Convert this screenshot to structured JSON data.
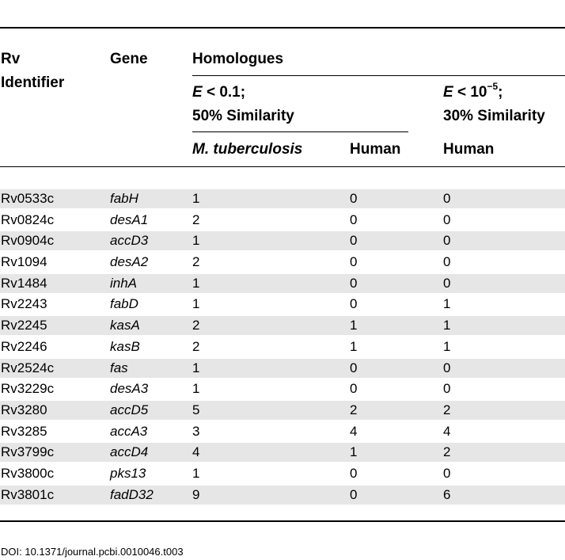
{
  "table": {
    "headers": {
      "rv_identifier": [
        "Rv",
        "Identifier"
      ],
      "gene": "Gene",
      "homologues": "Homologues",
      "group1": {
        "e_var": "E",
        "e_cond": " < 0.1;",
        "similarity": "50% Similarity"
      },
      "group2": {
        "e_var": "E",
        "e_cond": " < 10",
        "e_exp": "−5",
        "e_tail": ";",
        "similarity": "30% Similarity"
      },
      "col_mtb": "M. tuberculosis",
      "col_human1": "Human",
      "col_human2": "Human"
    },
    "rows": [
      {
        "rv": "Rv0533c",
        "gene": "fabH",
        "mtb": "1",
        "human1": "0",
        "human2": "0"
      },
      {
        "rv": "Rv0824c",
        "gene": "desA1",
        "mtb": "2",
        "human1": "0",
        "human2": "0"
      },
      {
        "rv": "Rv0904c",
        "gene": "accD3",
        "mtb": "1",
        "human1": "0",
        "human2": "0"
      },
      {
        "rv": "Rv1094",
        "gene": "desA2",
        "mtb": "2",
        "human1": "0",
        "human2": "0"
      },
      {
        "rv": "Rv1484",
        "gene": "inhA",
        "mtb": "1",
        "human1": "0",
        "human2": "0"
      },
      {
        "rv": "Rv2243",
        "gene": "fabD",
        "mtb": "1",
        "human1": "0",
        "human2": "1"
      },
      {
        "rv": "Rv2245",
        "gene": "kasA",
        "mtb": "2",
        "human1": "1",
        "human2": "1"
      },
      {
        "rv": "Rv2246",
        "gene": "kasB",
        "mtb": "2",
        "human1": "1",
        "human2": "1"
      },
      {
        "rv": "Rv2524c",
        "gene": "fas",
        "mtb": "1",
        "human1": "0",
        "human2": "0"
      },
      {
        "rv": "Rv3229c",
        "gene": "desA3",
        "mtb": "1",
        "human1": "0",
        "human2": "0"
      },
      {
        "rv": "Rv3280",
        "gene": "accD5",
        "mtb": "5",
        "human1": "2",
        "human2": "2"
      },
      {
        "rv": "Rv3285",
        "gene": "accA3",
        "mtb": "3",
        "human1": "4",
        "human2": "4"
      },
      {
        "rv": "Rv3799c",
        "gene": "accD4",
        "mtb": "4",
        "human1": "1",
        "human2": "2"
      },
      {
        "rv": "Rv3800c",
        "gene": "pks13",
        "mtb": "1",
        "human1": "0",
        "human2": "0"
      },
      {
        "rv": "Rv3801c",
        "gene": "fadD32",
        "mtb": "9",
        "human1": "0",
        "human2": "6"
      }
    ]
  },
  "doi": "DOI: 10.1371/journal.pcbi.0010046.t003"
}
